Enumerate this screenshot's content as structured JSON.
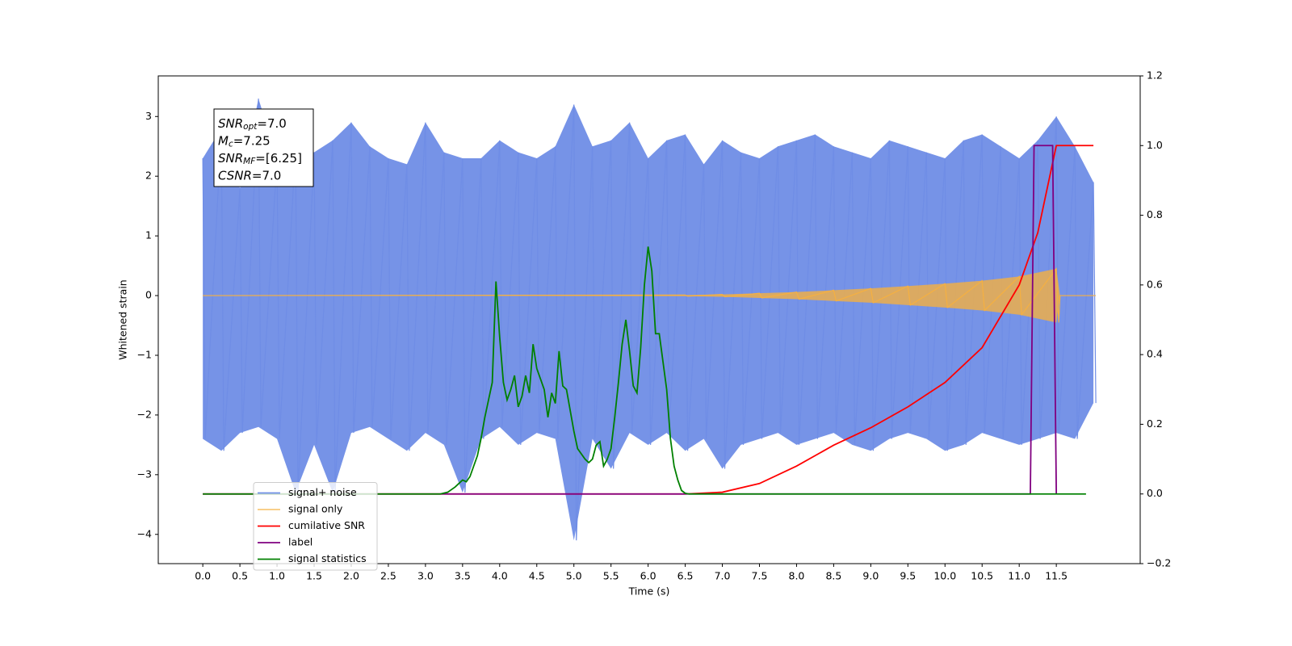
{
  "chart_data": {
    "type": "line",
    "xlabel": "Time (s)",
    "ylabel": "Whitened strain",
    "xlim": [
      -0.6,
      12.63
    ],
    "ylim": [
      -4.49,
      3.68
    ],
    "y2lim": [
      -0.2,
      1.2
    ],
    "xticks": [
      {
        "value": 0,
        "label": "0.0"
      },
      0.5,
      {
        "value": 1,
        "label": "1.0"
      },
      1.5,
      {
        "value": 2,
        "label": "2.0"
      },
      2.5,
      {
        "value": 3,
        "label": "3.0"
      },
      3.5,
      {
        "value": 4,
        "label": "4.0"
      },
      4.5,
      {
        "value": 5,
        "label": "5.0"
      },
      5.5,
      {
        "value": 6,
        "label": "6.0"
      },
      6.5,
      {
        "value": 7,
        "label": "7.0"
      },
      7.5,
      {
        "value": 8,
        "label": "8.0"
      },
      8.5,
      {
        "value": 9,
        "label": "9.0"
      },
      9.5,
      {
        "value": 10,
        "label": "10.0"
      },
      10.5,
      {
        "value": 11,
        "label": "11.0"
      },
      11.5
    ],
    "yticks": [
      {
        "value": -4,
        "label": "−4"
      },
      {
        "value": -3,
        "label": "−3"
      },
      {
        "value": -2,
        "label": "−2"
      },
      {
        "value": -1,
        "label": "−1"
      },
      0,
      1,
      2,
      3
    ],
    "y2ticks": [
      {
        "value": -0.2,
        "label": "−0.2"
      },
      {
        "value": 0,
        "label": "0.0"
      },
      0.2,
      0.4,
      0.6,
      0.8,
      {
        "value": 1,
        "label": "1.0"
      },
      {
        "value": 1.2,
        "label": "1.2"
      }
    ],
    "grid": false,
    "legend": "lower left",
    "annotations": [
      {
        "base": "SNR",
        "sub": "opt",
        "rest": "=7.0"
      },
      {
        "base": "M",
        "sub": "c",
        "rest": "=7.25"
      },
      {
        "base": "SNR",
        "sub": "MF",
        "rest": "=[6.25]"
      },
      {
        "base": "CSNR",
        "sub": null,
        "rest": "=7.0"
      }
    ],
    "series": [
      {
        "name": "signal+ noise",
        "color": "#6f8de6",
        "x": [
          0,
          0.25,
          0.5,
          0.75,
          1,
          1.25,
          1.5,
          1.75,
          2,
          2.25,
          2.5,
          2.75,
          3,
          3.25,
          3.5,
          3.75,
          4,
          4.25,
          4.5,
          4.75,
          5,
          5.25,
          5.5,
          5.75,
          6,
          6.25,
          6.5,
          6.75,
          7,
          7.25,
          7.5,
          7.75,
          8,
          8.25,
          8.5,
          8.75,
          9,
          9.25,
          9.5,
          9.75,
          10,
          10.25,
          10.5,
          10.75,
          11,
          11.25,
          11.5,
          11.75,
          12
        ],
        "values": [
          2.3,
          2.8,
          1.8,
          3.3,
          2.3,
          2.5,
          2.4,
          2.6,
          2.9,
          2.5,
          2.3,
          2.2,
          2.9,
          2.4,
          2.3,
          2.3,
          2.6,
          2.4,
          2.3,
          2.5,
          3.2,
          2.5,
          2.6,
          2.9,
          2.3,
          2.6,
          2.7,
          2.2,
          2.6,
          2.4,
          2.3,
          2.5,
          2.6,
          2.7,
          2.5,
          2.4,
          2.3,
          2.6,
          2.5,
          2.4,
          2.3,
          2.6,
          2.7,
          2.5,
          2.3,
          2.6,
          3.0,
          2.5,
          1.9
        ],
        "lower": [
          -2.4,
          -2.6,
          -2.3,
          -2.2,
          -2.4,
          -3.3,
          -2.5,
          -3.3,
          -2.3,
          -2.2,
          -2.4,
          -2.6,
          -2.3,
          -2.5,
          -3.3,
          -2.4,
          -2.2,
          -2.5,
          -2.3,
          -2.4,
          -4.1,
          -2.4,
          -2.9,
          -2.3,
          -2.5,
          -2.3,
          -2.6,
          -2.4,
          -2.9,
          -2.5,
          -2.4,
          -2.3,
          -2.5,
          -2.4,
          -2.3,
          -2.5,
          -2.6,
          -2.4,
          -2.3,
          -2.4,
          -2.6,
          -2.5,
          -2.3,
          -2.4,
          -2.5,
          -2.4,
          -2.3,
          -2.4,
          -1.8
        ]
      },
      {
        "name": "signal only",
        "color": "#f5b041",
        "x": [
          0,
          6.5,
          7,
          7.5,
          8,
          8.5,
          9,
          9.5,
          10,
          10.5,
          11,
          11.5,
          11.55,
          12
        ],
        "values": [
          0,
          0.01,
          0.02,
          0.04,
          0.06,
          0.09,
          0.12,
          0.16,
          0.2,
          0.25,
          0.32,
          0.45,
          0,
          0
        ],
        "lower": [
          0,
          -0.01,
          -0.02,
          -0.04,
          -0.06,
          -0.09,
          -0.12,
          -0.16,
          -0.2,
          -0.25,
          -0.32,
          -0.45,
          0,
          0
        ]
      },
      {
        "name": "cumilative SNR",
        "color": "#ff0000",
        "axis": "y2",
        "x": [
          0,
          6.5,
          7,
          7.5,
          8,
          8.5,
          9,
          9.5,
          10,
          10.5,
          11,
          11.25,
          11.5,
          12
        ],
        "values": [
          0,
          0,
          0.005,
          0.03,
          0.08,
          0.14,
          0.19,
          0.25,
          0.32,
          0.42,
          0.6,
          0.75,
          1.0,
          1.0
        ]
      },
      {
        "name": "label",
        "color": "#800080",
        "axis": "y2",
        "x": [
          0,
          11.15,
          11.2,
          11.45,
          11.5
        ],
        "values": [
          0,
          0,
          1,
          1,
          0
        ]
      },
      {
        "name": "signal statistics",
        "color": "#008000",
        "axis": "y2",
        "x": [
          0,
          3.2,
          3.3,
          3.4,
          3.5,
          3.55,
          3.6,
          3.7,
          3.75,
          3.8,
          3.85,
          3.9,
          3.95,
          4.0,
          4.05,
          4.1,
          4.15,
          4.2,
          4.25,
          4.3,
          4.35,
          4.4,
          4.45,
          4.5,
          4.55,
          4.6,
          4.65,
          4.7,
          4.75,
          4.8,
          4.85,
          4.9,
          4.95,
          5.0,
          5.05,
          5.15,
          5.2,
          5.25,
          5.3,
          5.35,
          5.4,
          5.45,
          5.5,
          5.55,
          5.6,
          5.65,
          5.7,
          5.75,
          5.8,
          5.85,
          5.9,
          5.95,
          6.0,
          6.05,
          6.1,
          6.15,
          6.2,
          6.25,
          6.3,
          6.35,
          6.4,
          6.45,
          6.5,
          6.55,
          11.9
        ],
        "values": [
          0,
          0,
          0.005,
          0.02,
          0.04,
          0.035,
          0.05,
          0.11,
          0.16,
          0.22,
          0.27,
          0.32,
          0.61,
          0.45,
          0.32,
          0.27,
          0.3,
          0.34,
          0.25,
          0.28,
          0.34,
          0.29,
          0.43,
          0.36,
          0.33,
          0.3,
          0.22,
          0.29,
          0.26,
          0.41,
          0.31,
          0.3,
          0.24,
          0.18,
          0.13,
          0.1,
          0.09,
          0.1,
          0.14,
          0.15,
          0.08,
          0.1,
          0.13,
          0.22,
          0.32,
          0.43,
          0.5,
          0.41,
          0.31,
          0.29,
          0.42,
          0.6,
          0.71,
          0.64,
          0.46,
          0.46,
          0.38,
          0.3,
          0.16,
          0.08,
          0.04,
          0.01,
          0.002,
          0,
          0
        ]
      }
    ]
  }
}
